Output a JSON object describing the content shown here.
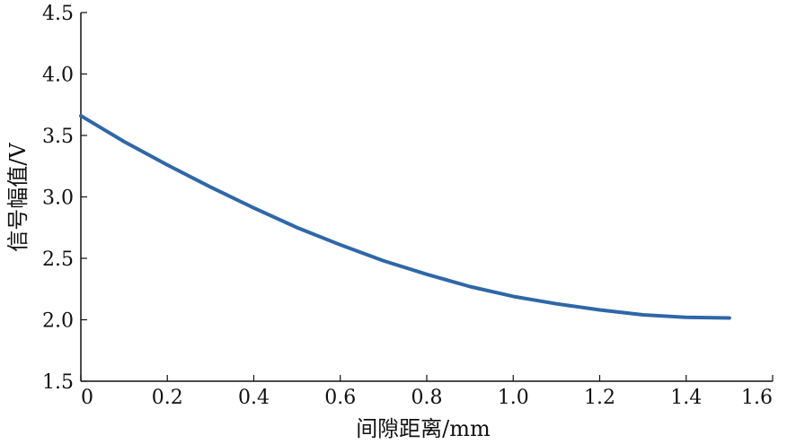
{
  "chart_data": {
    "type": "line",
    "xlabel": "间隙距离/mm",
    "ylabel": "信号幅值/V",
    "xlim": [
      0,
      1.6
    ],
    "ylim": [
      1.5,
      4.5
    ],
    "xticks": [
      "0",
      "0.2",
      "0.4",
      "0.6",
      "0.8",
      "1.0",
      "1.2",
      "1.4",
      "1.6"
    ],
    "yticks": [
      "1.5",
      "2.0",
      "2.5",
      "3.0",
      "3.5",
      "4.0",
      "4.5"
    ],
    "grid": false,
    "legend": false,
    "line_color": "#2f67a8",
    "series": [
      {
        "x": [
          0,
          0.1,
          0.2,
          0.3,
          0.4,
          0.5,
          0.6,
          0.7,
          0.8,
          0.9,
          1.0,
          1.1,
          1.2,
          1.3,
          1.4,
          1.5
        ],
        "y": [
          3.66,
          3.45,
          3.26,
          3.08,
          2.91,
          2.75,
          2.61,
          2.48,
          2.37,
          2.27,
          2.19,
          2.13,
          2.08,
          2.04,
          2.02,
          2.015
        ]
      }
    ]
  }
}
